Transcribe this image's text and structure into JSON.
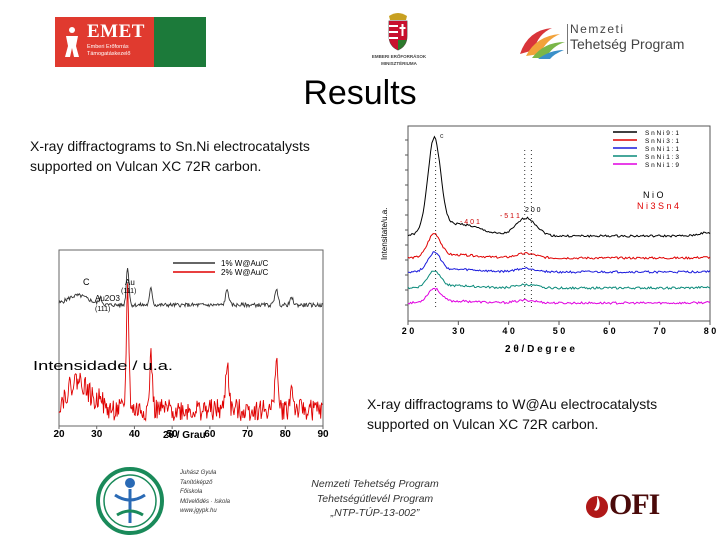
{
  "header": {
    "emet": {
      "word": "EMET",
      "sub": "Emberi Erőforrás Támogatáskezelő"
    },
    "ministry": {
      "line1": "EMBERI ERŐFORRÁSOK",
      "line2": "MINISZTÉRIUMA"
    },
    "ntp": {
      "line1": "Nemzeti",
      "line2": "Tehetség Program"
    }
  },
  "title": "Results",
  "caption_1": "X-ray diffractograms to Sn.Ni electrocatalysts supported on Vulcan XC 72R carbon.",
  "caption_2": "X-ray diffractograms to W@Au electrocatalysts supported on Vulcan XC 72R carbon.",
  "footer": {
    "line1": "Nemzeti Tehetség Program",
    "line2": "Tehetségútlevél Program",
    "line3": "„NTP-TÚP-13-002”",
    "school": [
      "Juhász Gyula",
      "Tanítóképző",
      "Főiskola",
      "Művelődés · Iskola",
      "www.jgypk.hu"
    ],
    "ofi_word": "OFI"
  },
  "chart_data": [
    {
      "type": "line",
      "xlabel": "2 θ / D e g r e e",
      "ylabel": "Intensitate/u.a.",
      "xlim": [
        20,
        80
      ],
      "xticks": [
        20,
        30,
        40,
        50,
        60,
        70,
        80
      ],
      "series": [
        {
          "name": "S n N i 9 : 1",
          "color": "#000000"
        },
        {
          "name": "S n N i 3 : 1",
          "color": "#e00000"
        },
        {
          "name": "S n N i 1 : 1",
          "color": "#1a1adc"
        },
        {
          "name": "S n N i 1 : 3",
          "color": "#0a8a7a"
        },
        {
          "name": "S n N i 1 : 9",
          "color": "#e000e0"
        }
      ],
      "annotations": {
        "c": "c",
        "p200": "2 0 0",
        "p111": "- 5 1 1",
        "p401": "- 4 0 1",
        "nio": "N i O",
        "ni3sn4": "N i 3 S n 4"
      }
    },
    {
      "type": "line",
      "xlabel": "2θ / Grau",
      "ylabel": "Intensidade / u.a.",
      "xlim": [
        20,
        90
      ],
      "xticks": [
        20,
        30,
        40,
        50,
        60,
        70,
        80,
        90
      ],
      "series": [
        {
          "name": "1% W@Au/C",
          "color": "#333333"
        },
        {
          "name": "2% W@Au/C",
          "color": "#e00000"
        }
      ],
      "annotations": {
        "c": "C",
        "au": "Au",
        "au111": "(111)",
        "au2o3": "Au2O3",
        "au2o3_111": "(111)",
        "overlay": "Intensidade / u.a."
      }
    }
  ]
}
